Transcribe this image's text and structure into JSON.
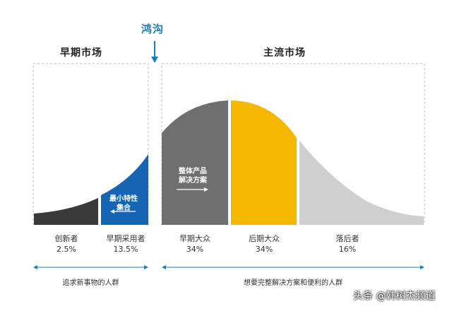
{
  "headers": {
    "early_market": "早期市场",
    "chasm": "鸿沟",
    "mainstream_market": "主流市场"
  },
  "curve_labels": {
    "mvp_line1": "最小特性",
    "mvp_line2": "集合",
    "whole_product_line1": "整体产品",
    "whole_product_line2": "解决方案"
  },
  "segments": [
    {
      "name": "创新者",
      "pct": "2.5%",
      "color": "#3a3a3a"
    },
    {
      "name": "早期采用者",
      "pct": "13.5%",
      "color": "#1565b4"
    },
    {
      "name": "早期大众",
      "pct": "34%",
      "color": "#6f6f6f"
    },
    {
      "name": "后期大众",
      "pct": "34%",
      "color": "#f5b800"
    },
    {
      "name": "落后者",
      "pct": "16%",
      "color": "#cfcfcf"
    }
  ],
  "bottom": {
    "left": "追求新事物的人群",
    "right": "想要完整解决方案和便利的人群"
  },
  "watermark": "头条 @韩树杰频道",
  "colors": {
    "chasm_accent": "#1a7fb8",
    "arrow": "#1a7fb8"
  }
}
